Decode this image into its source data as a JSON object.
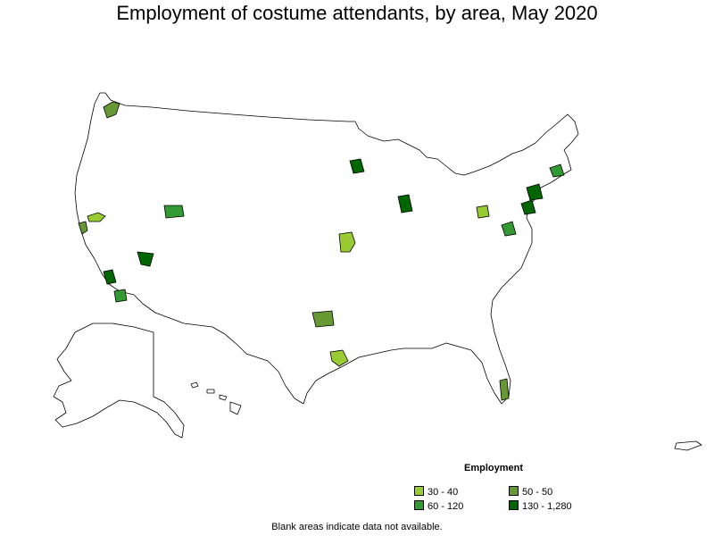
{
  "title": "Employment of costume attendants, by area, May 2020",
  "legend": {
    "title": "Employment",
    "items": [
      {
        "label": "30 - 40",
        "color": "#99cc33"
      },
      {
        "label": "50 - 50",
        "color": "#669933"
      },
      {
        "label": "60 - 120",
        "color": "#339933"
      },
      {
        "label": "130 - 1,280",
        "color": "#006600"
      }
    ]
  },
  "footnote": "Blank areas indicate data not available.",
  "colors": {
    "land_fill": "#ffffff",
    "border": "#000000"
  },
  "highlighted_areas": [
    {
      "region": "Seattle area",
      "class": "50 - 50"
    },
    {
      "region": "Sacramento area",
      "class": "30 - 40"
    },
    {
      "region": "San Francisco Bay area",
      "class": "50 - 50"
    },
    {
      "region": "Salt Lake City area",
      "class": "60 - 120"
    },
    {
      "region": "Las Vegas area",
      "class": "130 - 1,280"
    },
    {
      "region": "Los Angeles area",
      "class": "130 - 1,280"
    },
    {
      "region": "San Diego area",
      "class": "60 - 120"
    },
    {
      "region": "Kansas City area",
      "class": "30 - 40"
    },
    {
      "region": "Dallas-Fort Worth area",
      "class": "50 - 50"
    },
    {
      "region": "Houston area",
      "class": "30 - 40"
    },
    {
      "region": "Minneapolis area",
      "class": "130 - 1,280"
    },
    {
      "region": "Chicago area",
      "class": "130 - 1,280"
    },
    {
      "region": "Pittsburgh area",
      "class": "30 - 40"
    },
    {
      "region": "Washington DC area",
      "class": "60 - 120"
    },
    {
      "region": "Philadelphia area",
      "class": "130 - 1,280"
    },
    {
      "region": "New York area",
      "class": "130 - 1,280"
    },
    {
      "region": "Boston area",
      "class": "60 - 120"
    },
    {
      "region": "Miami area",
      "class": "50 - 50"
    }
  ]
}
